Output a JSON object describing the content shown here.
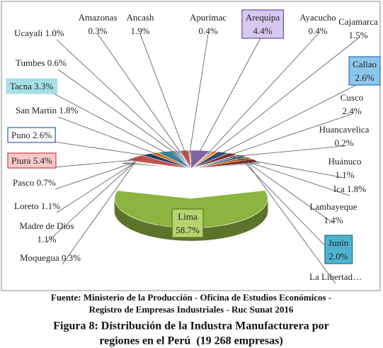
{
  "chart_data": {
    "type": "pie3d",
    "categories": [
      "Amazonas",
      "Ancash",
      "Apurímac",
      "Arequipa",
      "Ayacucho",
      "Cajamarca",
      "Callao",
      "Cusco",
      "Huancavelica",
      "Huánuco",
      "Ica",
      "Junín",
      "La Libertad…",
      "Lambayeque",
      "Lima",
      "Loreto",
      "Madre de Dios",
      "Moquegua",
      "Pasco",
      "Piura",
      "Puno",
      "San Martin",
      "Tacna",
      "Tumbes",
      "Ucayali"
    ],
    "values": [
      0.3,
      1.9,
      0.4,
      4.4,
      0.4,
      1.5,
      2.6,
      2.4,
      0.2,
      1.1,
      1.8,
      2.0,
      3.0,
      1.4,
      58.7,
      1.1,
      1.1,
      0.3,
      0.7,
      5.4,
      2.6,
      1.8,
      3.3,
      0.6,
      1.0
    ],
    "value_labels": [
      "0.3%",
      "1.9%",
      "0.4%",
      "4.4%",
      "0.4%",
      "1.5%",
      "2.6%",
      "2.4%",
      "0.2%",
      "1.1%",
      "1.8%",
      "2.0%",
      null,
      "1.4%",
      "58.7%",
      "1.1%",
      "1.1%",
      "0.3%",
      "0.7%",
      "5.4%",
      "2.6%",
      "1.8%",
      "3.3%",
      "0.6%",
      "1.0%"
    ],
    "colors": [
      "#4f81bd",
      "#c0504d",
      "#9bbb59",
      "#8064a2",
      "#4bacc6",
      "#f79646",
      "#2c4d75",
      "#772c2a",
      "#5f7530",
      "#4d3b62",
      "#276a7c",
      "#b65708",
      "#7f1f1f",
      "#729aca",
      "#8db340",
      "#4f6228",
      "#d99694",
      "#b3a2c7",
      "#93cddd",
      "#c0504d",
      "#1f3864",
      "#e46c0a",
      "#31859c",
      "#953735",
      "#8eb4e3"
    ],
    "source": [
      "Fuente: Ministerio de la Producción - Oficina de Estudios Económicos -",
      "Registro de Empresas Industriales - Ruc Sunat 2016"
    ],
    "caption": [
      "Figura 8: Distribución de la Industra Manufacturera por",
      "regiones en el Perú  (19 268 empresas)"
    ]
  }
}
